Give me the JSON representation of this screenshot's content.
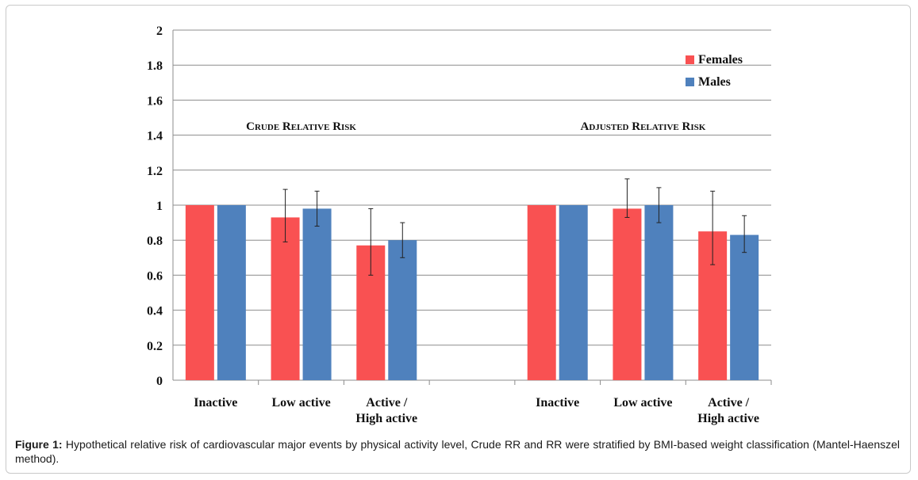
{
  "chart_data": {
    "type": "bar",
    "ylim": [
      0,
      2
    ],
    "yticks": [
      "0",
      "0.2",
      "0.4",
      "0.6",
      "0.8",
      "1",
      "1.2",
      "1.4",
      "1.6",
      "1.8",
      "2"
    ],
    "grid": true,
    "legend_position": "top-right",
    "groups": [
      {
        "label": "Crude Relative Risk",
        "categories": [
          "Inactive",
          "Low active",
          "Active / High active"
        ],
        "series": [
          {
            "name": "Females",
            "color": "#f95152",
            "values": [
              1,
              0.93,
              0.77
            ],
            "err_low": [
              1,
              0.79,
              0.6
            ],
            "err_high": [
              1,
              1.09,
              0.98
            ]
          },
          {
            "name": "Males",
            "color": "#4f81bd",
            "values": [
              1,
              0.98,
              0.8
            ],
            "err_low": [
              1,
              0.88,
              0.7
            ],
            "err_high": [
              1,
              1.08,
              0.9
            ]
          }
        ]
      },
      {
        "label": "Adjusted Relative Risk",
        "categories": [
          "Inactive",
          "Low active",
          "Active / High active"
        ],
        "series": [
          {
            "name": "Females",
            "color": "#f95152",
            "values": [
              1,
              0.98,
              0.85
            ],
            "err_low": [
              1,
              0.93,
              0.66
            ],
            "err_high": [
              1,
              1.15,
              1.08
            ]
          },
          {
            "name": "Males",
            "color": "#4f81bd",
            "values": [
              1,
              1.0,
              0.83
            ],
            "err_low": [
              1,
              0.9,
              0.73
            ],
            "err_high": [
              1,
              1.1,
              0.94
            ]
          }
        ]
      }
    ]
  },
  "caption": {
    "label": "Figure 1:",
    "text": "Hypothetical relative risk of cardiovascular major events by physical activity level, Crude RR and RR were stratified by BMI-based weight classification (Mantel-Haenszel method)."
  }
}
